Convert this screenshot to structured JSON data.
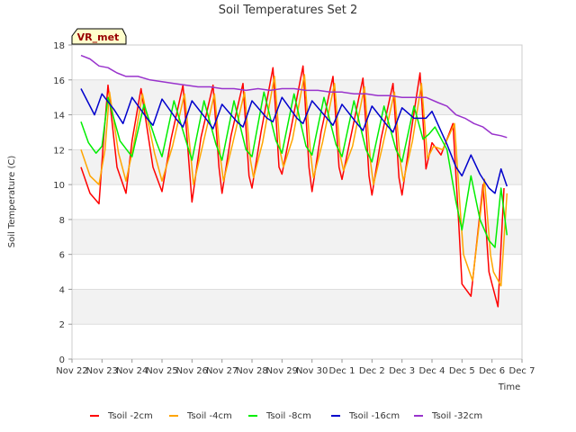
{
  "chart_data": {
    "type": "line",
    "title": "Soil Temperatures Set 2",
    "xlabel": "Time",
    "ylabel": "Soil Temperature (C)",
    "ylim": [
      0,
      18
    ],
    "y_ticks": [
      0,
      2,
      4,
      6,
      8,
      10,
      12,
      14,
      16,
      18
    ],
    "xlim": [
      0,
      15
    ],
    "x_ticks": [
      {
        "pos": 0,
        "label": "Nov 22"
      },
      {
        "pos": 1,
        "label": "Nov 23"
      },
      {
        "pos": 2,
        "label": "Nov 24"
      },
      {
        "pos": 3,
        "label": "Nov 25"
      },
      {
        "pos": 4,
        "label": "Nov 26"
      },
      {
        "pos": 5,
        "label": "Nov 27"
      },
      {
        "pos": 6,
        "label": "Nov 28"
      },
      {
        "pos": 7,
        "label": "Nov 29"
      },
      {
        "pos": 8,
        "label": "Nov 30"
      },
      {
        "pos": 9,
        "label": "Dec 1"
      },
      {
        "pos": 10,
        "label": "Dec 2"
      },
      {
        "pos": 11,
        "label": "Dec 3"
      },
      {
        "pos": 12,
        "label": "Dec 4"
      },
      {
        "pos": 13,
        "label": "Dec 5"
      },
      {
        "pos": 14,
        "label": "Dec 6"
      },
      {
        "pos": 15,
        "label": "Dec 7"
      }
    ],
    "grid": "horizontal bands",
    "legend_position": "bottom",
    "annotation": "VR_met",
    "series": [
      {
        "name": "Tsoil -2cm",
        "color": "#ff0000",
        "x": [
          0.3,
          0.6,
          0.9,
          1.05,
          1.2,
          1.5,
          1.8,
          2.0,
          2.3,
          2.7,
          3.0,
          3.3,
          3.7,
          3.9,
          4.0,
          4.3,
          4.7,
          4.9,
          5.0,
          5.3,
          5.7,
          5.9,
          6.0,
          6.3,
          6.7,
          6.9,
          7.0,
          7.3,
          7.7,
          7.9,
          8.0,
          8.3,
          8.7,
          8.9,
          9.0,
          9.3,
          9.7,
          9.9,
          10.0,
          10.3,
          10.7,
          10.9,
          11.0,
          11.3,
          11.6,
          11.8,
          12.0,
          12.3,
          12.7,
          12.9,
          13.0,
          13.3,
          13.7,
          13.9,
          14.0,
          14.2,
          14.4
        ],
        "values": [
          11.0,
          9.5,
          8.9,
          12.5,
          15.7,
          11.0,
          9.5,
          12.5,
          15.5,
          11.0,
          9.6,
          12.6,
          15.7,
          11.2,
          9.0,
          12.7,
          15.7,
          11.0,
          9.5,
          12.8,
          15.8,
          10.5,
          9.8,
          13.0,
          16.7,
          11.0,
          10.6,
          13.2,
          16.8,
          11.0,
          9.6,
          13.0,
          16.2,
          11.0,
          10.3,
          12.8,
          16.1,
          10.5,
          9.4,
          12.6,
          15.8,
          10.4,
          9.4,
          13.0,
          16.4,
          10.9,
          12.4,
          11.7,
          13.5,
          7.5,
          4.3,
          3.6,
          10.0,
          5.0,
          4.3,
          3.0,
          9.8
        ]
      },
      {
        "name": "Tsoil -4cm",
        "color": "#ffa500",
        "x": [
          0.3,
          0.6,
          0.9,
          1.1,
          1.25,
          1.55,
          1.8,
          2.05,
          2.35,
          2.75,
          3.0,
          3.35,
          3.75,
          3.95,
          4.05,
          4.35,
          4.75,
          4.95,
          5.05,
          5.35,
          5.75,
          5.95,
          6.05,
          6.35,
          6.75,
          6.95,
          7.05,
          7.35,
          7.75,
          7.95,
          8.05,
          8.35,
          8.75,
          8.95,
          9.05,
          9.35,
          9.75,
          9.95,
          10.05,
          10.35,
          10.75,
          10.95,
          11.05,
          11.35,
          11.65,
          11.85,
          12.05,
          12.35,
          12.75,
          12.95,
          13.05,
          13.35,
          13.75,
          13.95,
          14.05,
          14.3,
          14.5
        ],
        "values": [
          12.0,
          10.5,
          10.0,
          12.0,
          15.3,
          11.8,
          10.2,
          12.2,
          15.2,
          11.8,
          10.2,
          12.2,
          15.2,
          11.8,
          10.0,
          12.2,
          15.2,
          11.5,
          10.2,
          12.3,
          15.3,
          11.4,
          10.4,
          12.4,
          16.2,
          11.8,
          11.0,
          12.6,
          16.3,
          11.8,
          10.4,
          12.4,
          15.8,
          11.6,
          10.8,
          12.2,
          15.6,
          11.3,
          10.0,
          12.2,
          15.3,
          11.2,
          10.2,
          12.5,
          15.8,
          11.5,
          12.2,
          12.0,
          13.5,
          8.3,
          6.0,
          4.5,
          10.3,
          6.0,
          5.0,
          4.2,
          9.5
        ]
      },
      {
        "name": "Tsoil -8cm",
        "color": "#00ee00",
        "x": [
          0.3,
          0.55,
          0.8,
          1.0,
          1.2,
          1.6,
          2.0,
          2.4,
          2.8,
          3.0,
          3.4,
          3.8,
          4.0,
          4.4,
          4.8,
          5.0,
          5.4,
          5.8,
          6.0,
          6.4,
          6.8,
          7.0,
          7.4,
          7.8,
          8.0,
          8.4,
          8.8,
          9.0,
          9.4,
          9.8,
          10.0,
          10.4,
          10.8,
          11.0,
          11.4,
          11.7,
          11.9,
          12.1,
          12.5,
          12.8,
          13.0,
          13.3,
          13.6,
          13.9,
          14.1,
          14.3,
          14.5
        ],
        "values": [
          13.6,
          12.4,
          11.8,
          12.2,
          15.0,
          12.5,
          11.6,
          14.6,
          12.5,
          11.6,
          14.8,
          12.5,
          11.4,
          14.8,
          12.3,
          11.4,
          14.8,
          12.0,
          11.6,
          15.3,
          12.5,
          11.8,
          15.2,
          12.2,
          11.7,
          15.0,
          12.3,
          11.6,
          14.8,
          12.0,
          11.3,
          14.5,
          12.0,
          11.3,
          14.5,
          12.6,
          12.9,
          13.3,
          12.0,
          9.0,
          7.4,
          10.5,
          8.0,
          6.8,
          6.4,
          9.8,
          7.1
        ]
      },
      {
        "name": "Tsoil -16cm",
        "color": "#0000cc",
        "x": [
          0.3,
          0.75,
          1.0,
          1.4,
          1.7,
          2.0,
          2.5,
          2.7,
          3.0,
          3.5,
          3.7,
          4.0,
          4.5,
          4.7,
          5.0,
          5.5,
          5.7,
          6.0,
          6.5,
          6.7,
          7.0,
          7.5,
          7.7,
          8.0,
          8.5,
          8.7,
          9.0,
          9.5,
          9.7,
          10.0,
          10.5,
          10.7,
          11.0,
          11.4,
          11.8,
          12.0,
          12.5,
          12.8,
          13.0,
          13.3,
          13.6,
          13.9,
          14.1,
          14.3,
          14.5
        ],
        "values": [
          15.5,
          14.0,
          15.2,
          14.3,
          13.5,
          15.0,
          13.8,
          13.4,
          14.9,
          13.7,
          13.3,
          14.8,
          13.7,
          13.2,
          14.6,
          13.6,
          13.3,
          14.8,
          13.8,
          13.6,
          15.0,
          13.8,
          13.5,
          14.8,
          13.8,
          13.4,
          14.6,
          13.5,
          13.1,
          14.5,
          13.4,
          13.0,
          14.4,
          13.8,
          13.8,
          14.2,
          12.3,
          11.0,
          10.5,
          11.7,
          10.6,
          9.8,
          9.5,
          10.9,
          9.9
        ]
      },
      {
        "name": "Tsoil -32cm",
        "color": "#9933cc",
        "x": [
          0.3,
          0.6,
          0.9,
          1.2,
          1.5,
          1.8,
          2.2,
          2.6,
          3.0,
          3.4,
          3.8,
          4.2,
          4.6,
          5.0,
          5.4,
          5.8,
          6.2,
          6.6,
          7.0,
          7.4,
          7.8,
          8.2,
          8.6,
          9.0,
          9.4,
          9.8,
          10.2,
          10.6,
          11.0,
          11.4,
          11.8,
          12.2,
          12.5,
          12.8,
          13.1,
          13.4,
          13.7,
          14.0,
          14.3,
          14.5
        ],
        "values": [
          17.4,
          17.2,
          16.8,
          16.7,
          16.4,
          16.2,
          16.2,
          16.0,
          15.9,
          15.8,
          15.7,
          15.6,
          15.6,
          15.5,
          15.5,
          15.4,
          15.5,
          15.4,
          15.5,
          15.5,
          15.4,
          15.4,
          15.3,
          15.3,
          15.2,
          15.2,
          15.1,
          15.1,
          15.0,
          15.0,
          15.0,
          14.7,
          14.5,
          14.0,
          13.8,
          13.5,
          13.3,
          12.9,
          12.8,
          12.7
        ]
      }
    ]
  }
}
